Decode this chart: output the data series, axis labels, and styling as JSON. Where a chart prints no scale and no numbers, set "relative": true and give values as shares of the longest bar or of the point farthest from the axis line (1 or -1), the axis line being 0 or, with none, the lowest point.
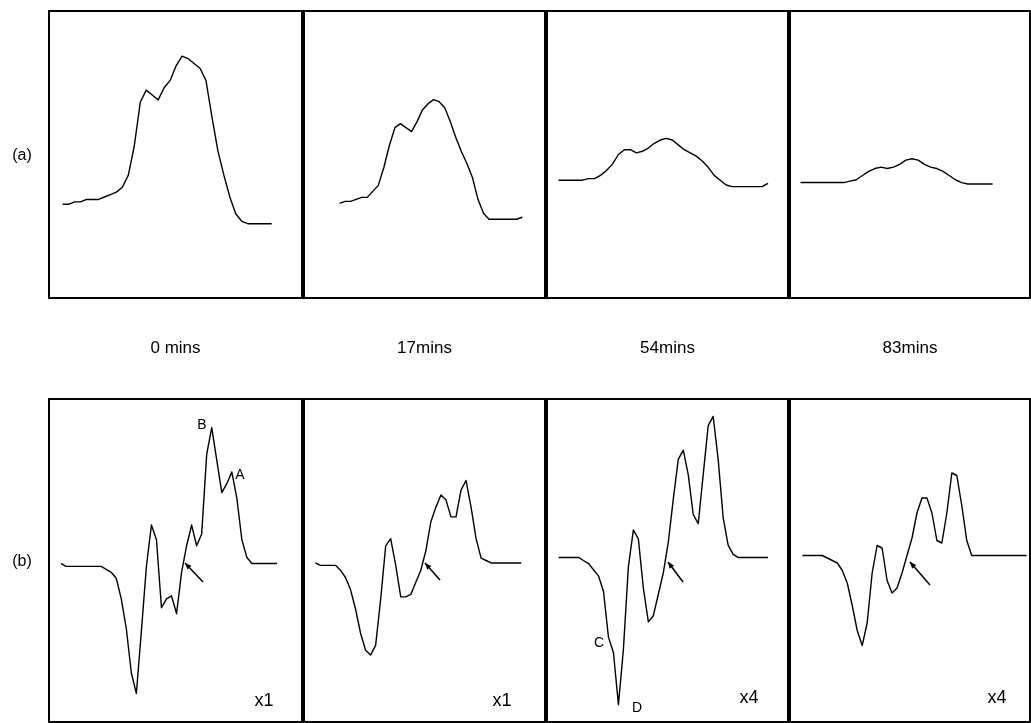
{
  "chart_data": [
    {
      "type": "line",
      "relative": true,
      "xlabel": "0 mins",
      "ylabel": "(a)",
      "categories": [
        null,
        null,
        null,
        null,
        null,
        null,
        null,
        null,
        null,
        null,
        null,
        null,
        null,
        null,
        null,
        null,
        null,
        null,
        null,
        null,
        null,
        null,
        null,
        null,
        null,
        null,
        null,
        null,
        null,
        null,
        null,
        null,
        null,
        null,
        null,
        null
      ],
      "series": [
        {
          "color": "#000000",
          "values": [
            0.39,
            0.39,
            0.4,
            0.4,
            0.41,
            0.41,
            0.41,
            0.42,
            0.43,
            0.44,
            0.46,
            0.51,
            0.63,
            0.81,
            0.86,
            0.84,
            0.82,
            0.87,
            0.9,
            0.96,
            1,
            0.99,
            0.97,
            0.95,
            0.9,
            0.75,
            0.61,
            0.51,
            0.42,
            0.35,
            0.32,
            0.31,
            0.31,
            0.31,
            0.31,
            0.31
          ]
        }
      ]
    },
    {
      "type": "line",
      "relative": true,
      "xlabel": "17mins",
      "categories": [
        null,
        null,
        null,
        null,
        null,
        null,
        null,
        null,
        null,
        null,
        null,
        null,
        null,
        null,
        null,
        null,
        null,
        null,
        null,
        null,
        null,
        null,
        null,
        null,
        null,
        null,
        null,
        null,
        null,
        null,
        null,
        null,
        null,
        null
      ],
      "series": [
        {
          "color": "#000000",
          "values": [
            0.48,
            0.49,
            0.49,
            0.5,
            0.51,
            0.51,
            0.54,
            0.57,
            0.66,
            0.77,
            0.86,
            0.88,
            0.86,
            0.84,
            0.89,
            0.95,
            0.98,
            1,
            0.99,
            0.96,
            0.89,
            0.81,
            0.74,
            0.68,
            0.61,
            0.5,
            0.43,
            0.4,
            0.4,
            0.4,
            0.4,
            0.4,
            0.4,
            0.41
          ]
        }
      ]
    },
    {
      "type": "line",
      "relative": true,
      "xlabel": "54mins",
      "categories": [
        null,
        null,
        null,
        null,
        null,
        null,
        null,
        null,
        null,
        null,
        null,
        null,
        null,
        null,
        null,
        null,
        null,
        null,
        null,
        null,
        null,
        null,
        null,
        null,
        null,
        null,
        null,
        null,
        null,
        null,
        null,
        null,
        null,
        null,
        null,
        null
      ],
      "series": [
        {
          "color": "#000000",
          "values": [
            0.74,
            0.74,
            0.74,
            0.74,
            0.74,
            0.75,
            0.75,
            0.77,
            0.8,
            0.84,
            0.9,
            0.93,
            0.93,
            0.91,
            0.92,
            0.94,
            0.97,
            0.99,
            1,
            0.99,
            0.96,
            0.93,
            0.91,
            0.89,
            0.86,
            0.82,
            0.77,
            0.74,
            0.71,
            0.7,
            0.7,
            0.7,
            0.7,
            0.7,
            0.7,
            0.72
          ]
        }
      ]
    },
    {
      "type": "line",
      "relative": true,
      "xlabel": "83mins",
      "categories": [
        null,
        null,
        null,
        null,
        null,
        null,
        null,
        null,
        null,
        null,
        null,
        null,
        null,
        null,
        null,
        null,
        null,
        null,
        null,
        null,
        null,
        null,
        null,
        null,
        null,
        null,
        null,
        null,
        null,
        null,
        null,
        null
      ],
      "series": [
        {
          "color": "#000000",
          "values": [
            0.83,
            0.83,
            0.83,
            0.83,
            0.83,
            0.83,
            0.83,
            0.83,
            0.84,
            0.85,
            0.88,
            0.91,
            0.93,
            0.94,
            0.93,
            0.94,
            0.96,
            0.99,
            1,
            0.99,
            0.96,
            0.94,
            0.93,
            0.91,
            0.88,
            0.85,
            0.83,
            0.82,
            0.82,
            0.82,
            0.82,
            0.82
          ]
        }
      ]
    },
    {
      "type": "line",
      "relative": true,
      "ylabel": "(b)",
      "annotations": [
        "B",
        "A",
        "x1"
      ],
      "categories": [
        null,
        null,
        null,
        null,
        null,
        null,
        null,
        null,
        null,
        null,
        null,
        null,
        null,
        null,
        null,
        null,
        null,
        null,
        null,
        null,
        null,
        null,
        null,
        null,
        null,
        null,
        null,
        null,
        null,
        null,
        null,
        null,
        null,
        null,
        null,
        null,
        null,
        null,
        null,
        null,
        null,
        null,
        null,
        null
      ],
      "series": [
        {
          "color": "#000000",
          "values": [
            0.54,
            0.53,
            0.53,
            0.53,
            0.53,
            0.53,
            0.53,
            0.53,
            0.53,
            0.52,
            0.51,
            0.49,
            0.42,
            0.32,
            0.17,
            0.1,
            0.31,
            0.53,
            0.67,
            0.62,
            0.39,
            0.42,
            0.43,
            0.37,
            0.51,
            0.6,
            0.67,
            0.6,
            0.64,
            0.91,
            1,
            0.89,
            0.78,
            0.81,
            0.85,
            0.76,
            0.62,
            0.56,
            0.54,
            0.54,
            0.54,
            0.54,
            0.54,
            0.54
          ]
        }
      ]
    },
    {
      "type": "line",
      "relative": true,
      "annotations": [
        "x1"
      ],
      "categories": [
        null,
        null,
        null,
        null,
        null,
        null,
        null,
        null,
        null,
        null,
        null,
        null,
        null,
        null,
        null,
        null,
        null,
        null,
        null,
        null,
        null,
        null,
        null,
        null,
        null,
        null,
        null,
        null,
        null,
        null,
        null,
        null,
        null,
        null,
        null,
        null,
        null,
        null,
        null,
        null,
        null,
        null
      ],
      "series": [
        {
          "color": "#000000",
          "values": [
            0.66,
            0.65,
            0.65,
            0.65,
            0.65,
            0.63,
            0.6,
            0.55,
            0.47,
            0.37,
            0.3,
            0.28,
            0.32,
            0.51,
            0.73,
            0.76,
            0.65,
            0.52,
            0.52,
            0.53,
            0.58,
            0.63,
            0.71,
            0.83,
            0.89,
            0.94,
            0.92,
            0.85,
            0.85,
            0.96,
            1,
            0.89,
            0.76,
            0.68,
            0.67,
            0.66,
            0.66,
            0.66,
            0.66,
            0.66,
            0.66,
            0.66
          ]
        }
      ]
    },
    {
      "type": "line",
      "relative": true,
      "annotations": [
        "C",
        "D",
        "x4"
      ],
      "categories": [
        null,
        null,
        null,
        null,
        null,
        null,
        null,
        null,
        null,
        null,
        null,
        null,
        null,
        null,
        null,
        null,
        null,
        null,
        null,
        null,
        null,
        null,
        null,
        null,
        null,
        null,
        null,
        null,
        null,
        null,
        null,
        null,
        null,
        null,
        null,
        null,
        null,
        null,
        null,
        null,
        null,
        null,
        null
      ],
      "series": [
        {
          "color": "#000000",
          "values": [
            0.54,
            0.54,
            0.54,
            0.54,
            0.54,
            0.53,
            0.52,
            0.5,
            0.48,
            0.43,
            0.28,
            0.23,
            0.06,
            0.24,
            0.51,
            0.63,
            0.6,
            0.44,
            0.33,
            0.35,
            0.42,
            0.49,
            0.59,
            0.73,
            0.86,
            0.89,
            0.81,
            0.68,
            0.65,
            0.81,
            0.97,
            1,
            0.86,
            0.67,
            0.58,
            0.55,
            0.54,
            0.54,
            0.54,
            0.54,
            0.54,
            0.54,
            0.54
          ]
        }
      ]
    },
    {
      "type": "line",
      "relative": true,
      "annotations": [
        "x4"
      ],
      "categories": [
        null,
        null,
        null,
        null,
        null,
        null,
        null,
        null,
        null,
        null,
        null,
        null,
        null,
        null,
        null,
        null,
        null,
        null,
        null,
        null,
        null,
        null,
        null,
        null,
        null,
        null,
        null,
        null,
        null,
        null,
        null,
        null,
        null,
        null,
        null,
        null,
        null,
        null,
        null,
        null,
        null,
        null,
        null,
        null,
        null,
        null
      ],
      "series": [
        {
          "color": "#000000",
          "values": [
            0.67,
            0.67,
            0.67,
            0.67,
            0.67,
            0.66,
            0.65,
            0.64,
            0.61,
            0.56,
            0.47,
            0.37,
            0.31,
            0.4,
            0.6,
            0.71,
            0.7,
            0.57,
            0.52,
            0.54,
            0.6,
            0.67,
            0.74,
            0.84,
            0.9,
            0.9,
            0.84,
            0.73,
            0.72,
            0.84,
            1,
            0.99,
            0.87,
            0.73,
            0.67,
            0.67,
            0.67,
            0.67,
            0.67,
            0.67,
            0.67,
            0.67,
            0.67,
            0.67,
            0.67,
            0.67
          ]
        }
      ]
    }
  ]
}
